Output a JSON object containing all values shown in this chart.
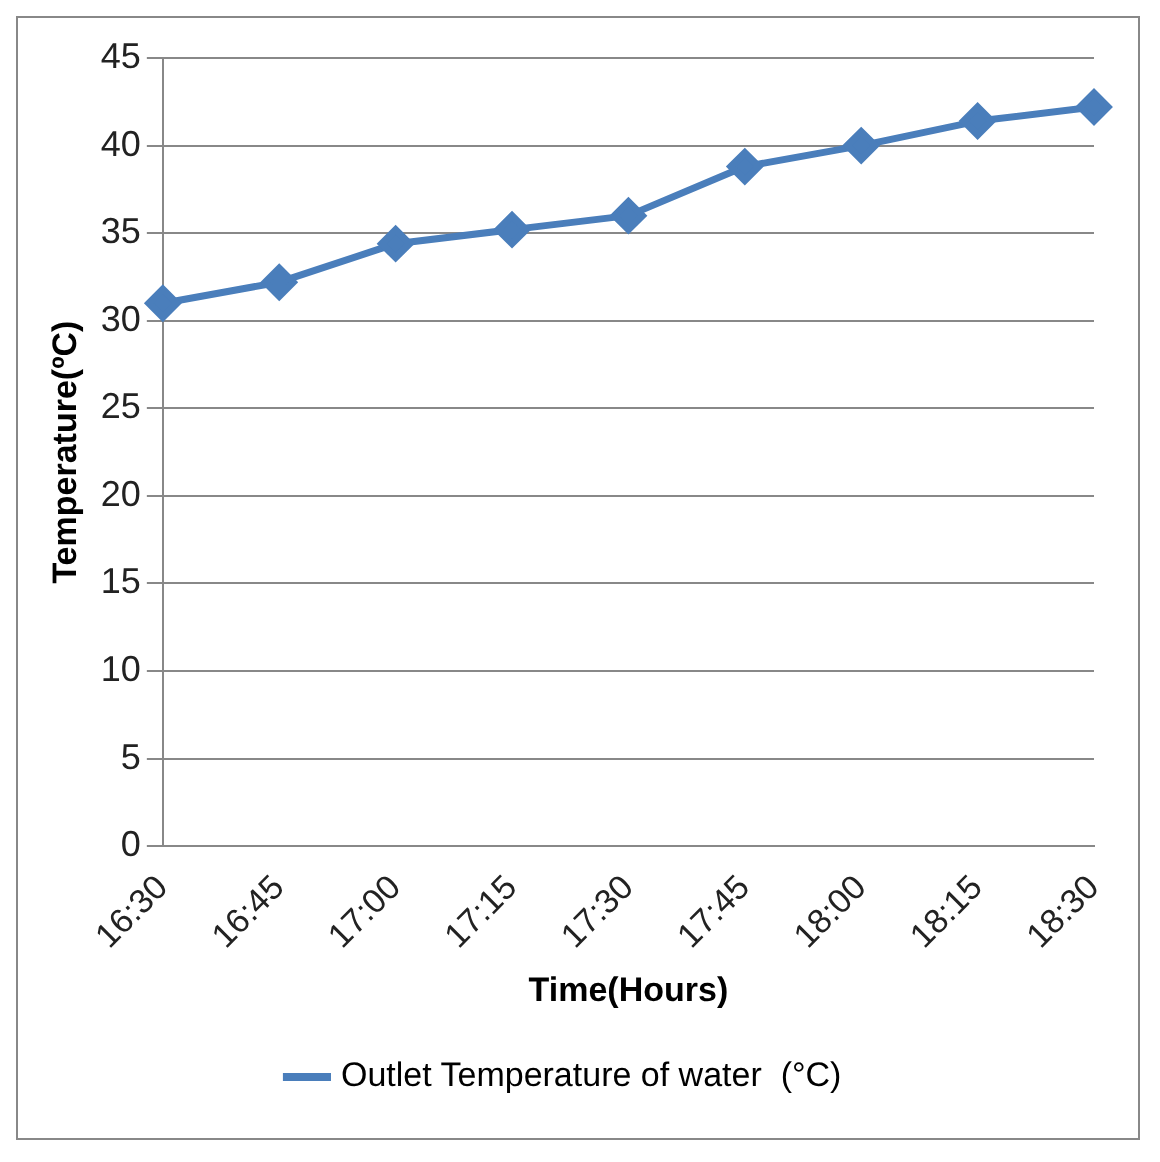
{
  "chart_data": {
    "type": "line",
    "xlabel": "Time(Hours)",
    "ylabel": "Temperature(ºC)",
    "categories": [
      "16:30",
      "16:45",
      "17:00",
      "17:15",
      "17:30",
      "17:45",
      "18:00",
      "18:15",
      "18:30"
    ],
    "series": [
      {
        "name": "Outlet Temperature of water  (°C)",
        "color": "#4a7ebb",
        "values": [
          31,
          32.2,
          34.4,
          35.2,
          36,
          38.8,
          40,
          41.4,
          42.2
        ]
      }
    ],
    "ylim": [
      0,
      45
    ],
    "yticks": [
      0,
      5,
      10,
      15,
      20,
      25,
      30,
      35,
      40,
      45
    ],
    "grid": "y",
    "legend": "bottom",
    "marker": "diamond",
    "line_style": "solid"
  }
}
